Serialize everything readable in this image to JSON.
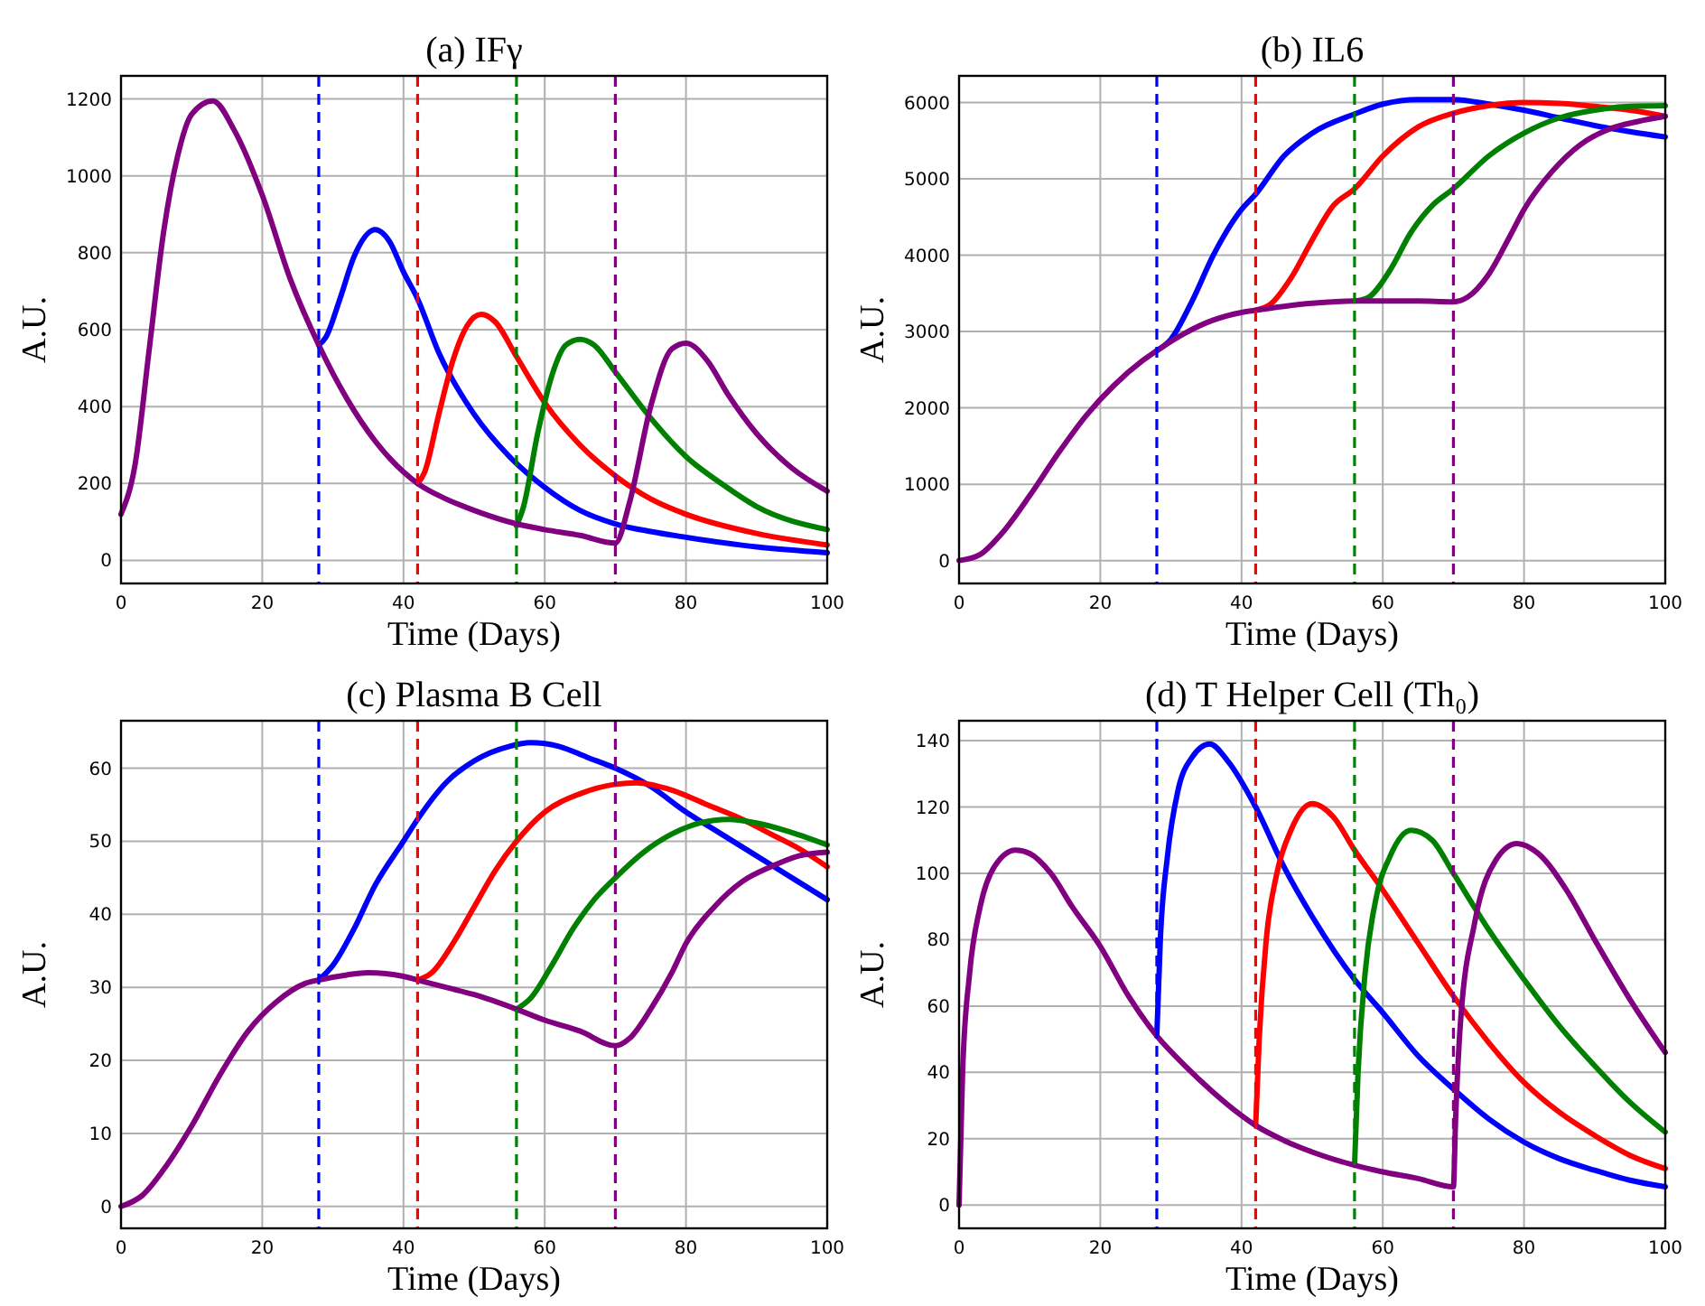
{
  "chart_data": [
    {
      "type": "line",
      "title": "(a) IFγ",
      "xlabel": "Time (Days)",
      "ylabel": "A.U.",
      "xlim": [
        0,
        100
      ],
      "ylim": [
        -60,
        1260
      ],
      "xticks": [
        0,
        20,
        40,
        60,
        80,
        100
      ],
      "yticks": [
        0,
        200,
        400,
        600,
        800,
        1000,
        1200
      ],
      "grid": true,
      "ref_lines": [
        {
          "axis": "x",
          "value": 28,
          "color": "#0000ff",
          "line_style": "dashed"
        },
        {
          "axis": "x",
          "value": 42,
          "color": "#ff0000",
          "line_style": "dashed"
        },
        {
          "axis": "x",
          "value": 56,
          "color": "#008000",
          "line_style": "dashed"
        },
        {
          "axis": "x",
          "value": 70,
          "color": "#800080",
          "line_style": "dashed"
        }
      ],
      "series": [
        {
          "color": "#0000ff",
          "x": [
            28,
            29,
            31,
            33,
            36,
            38,
            40,
            42,
            45,
            50,
            55,
            60,
            65,
            70,
            75,
            80,
            90,
            100
          ],
          "values": [
            560,
            580,
            680,
            790,
            860,
            830,
            750,
            680,
            540,
            380,
            270,
            190,
            130,
            95,
            75,
            60,
            35,
            20
          ]
        },
        {
          "color": "#ff0000",
          "x": [
            42,
            43,
            45,
            47,
            49,
            51,
            53,
            56,
            60,
            65,
            70,
            75,
            80,
            90,
            100
          ],
          "values": [
            200,
            230,
            380,
            520,
            610,
            640,
            620,
            530,
            410,
            300,
            220,
            160,
            120,
            70,
            40
          ]
        },
        {
          "color": "#008000",
          "x": [
            56,
            57,
            59,
            61,
            63,
            65,
            67,
            70,
            75,
            80,
            85,
            90,
            100
          ],
          "values": [
            90,
            140,
            330,
            480,
            560,
            575,
            560,
            490,
            370,
            270,
            200,
            140,
            80
          ]
        },
        {
          "color": "#800080",
          "x": [
            0,
            2,
            4,
            6,
            8,
            10,
            13,
            16,
            20,
            24,
            28,
            32,
            36,
            40,
            42,
            46,
            50,
            56,
            60,
            65,
            70,
            72,
            75,
            78,
            80,
            83,
            86,
            90,
            95,
            100
          ],
          "values": [
            120,
            250,
            550,
            850,
            1050,
            1160,
            1195,
            1120,
            950,
            730,
            560,
            420,
            310,
            230,
            200,
            160,
            130,
            95,
            80,
            65,
            45,
            150,
            400,
            550,
            565,
            520,
            430,
            330,
            240,
            180
          ]
        }
      ]
    },
    {
      "type": "line",
      "title": "(b) IL6",
      "xlabel": "Time (Days)",
      "ylabel": "A.U.",
      "xlim": [
        0,
        100
      ],
      "ylim": [
        -300,
        6350
      ],
      "xticks": [
        0,
        20,
        40,
        60,
        80,
        100
      ],
      "yticks": [
        0,
        1000,
        2000,
        3000,
        4000,
        5000,
        6000
      ],
      "grid": true,
      "ref_lines": [
        {
          "axis": "x",
          "value": 28,
          "color": "#0000ff",
          "line_style": "dashed"
        },
        {
          "axis": "x",
          "value": 42,
          "color": "#ff0000",
          "line_style": "dashed"
        },
        {
          "axis": "x",
          "value": 56,
          "color": "#008000",
          "line_style": "dashed"
        },
        {
          "axis": "x",
          "value": 70,
          "color": "#800080",
          "line_style": "dashed"
        }
      ],
      "series": [
        {
          "color": "#0000ff",
          "x": [
            28,
            30,
            33,
            36,
            40,
            42,
            46,
            50,
            56,
            60,
            65,
            70,
            75,
            80,
            85,
            90,
            95,
            100
          ],
          "values": [
            2750,
            2900,
            3400,
            4000,
            4600,
            4800,
            5300,
            5600,
            5850,
            5980,
            6040,
            6040,
            5980,
            5900,
            5800,
            5700,
            5620,
            5550
          ]
        },
        {
          "color": "#ff0000",
          "x": [
            42,
            44,
            47,
            50,
            53,
            56,
            60,
            65,
            70,
            75,
            80,
            85,
            90,
            95,
            100
          ],
          "values": [
            3280,
            3350,
            3700,
            4200,
            4650,
            4870,
            5300,
            5680,
            5860,
            5960,
            6000,
            5990,
            5950,
            5900,
            5820
          ]
        },
        {
          "color": "#008000",
          "x": [
            56,
            58,
            61,
            64,
            67,
            70,
            75,
            80,
            85,
            90,
            95,
            100
          ],
          "values": [
            3400,
            3450,
            3800,
            4300,
            4650,
            4870,
            5300,
            5600,
            5800,
            5900,
            5950,
            5960
          ]
        },
        {
          "color": "#800080",
          "x": [
            0,
            3,
            6,
            10,
            14,
            18,
            22,
            26,
            28,
            32,
            36,
            40,
            42,
            46,
            50,
            56,
            60,
            65,
            70,
            72,
            75,
            78,
            80,
            84,
            88,
            92,
            96,
            100
          ],
          "values": [
            0,
            80,
            350,
            850,
            1400,
            1900,
            2300,
            2620,
            2750,
            2980,
            3150,
            3250,
            3280,
            3330,
            3370,
            3400,
            3400,
            3400,
            3390,
            3450,
            3750,
            4250,
            4600,
            5100,
            5450,
            5650,
            5750,
            5820
          ]
        }
      ]
    },
    {
      "type": "line",
      "title": "(c) Plasma B Cell",
      "xlabel": "Time (Days)",
      "ylabel": "A.U.",
      "xlim": [
        0,
        100
      ],
      "ylim": [
        -3,
        66.5
      ],
      "xticks": [
        0,
        20,
        40,
        60,
        80,
        100
      ],
      "yticks": [
        0,
        10,
        20,
        30,
        40,
        50,
        60
      ],
      "grid": true,
      "ref_lines": [
        {
          "axis": "x",
          "value": 28,
          "color": "#0000ff",
          "line_style": "dashed"
        },
        {
          "axis": "x",
          "value": 42,
          "color": "#ff0000",
          "line_style": "dashed"
        },
        {
          "axis": "x",
          "value": 56,
          "color": "#008000",
          "line_style": "dashed"
        },
        {
          "axis": "x",
          "value": 70,
          "color": "#800080",
          "line_style": "dashed"
        }
      ],
      "series": [
        {
          "color": "#0000ff",
          "x": [
            28,
            30,
            33,
            36,
            40,
            42,
            46,
            50,
            55,
            58,
            62,
            66,
            70,
            75,
            80,
            85,
            90,
            95,
            100
          ],
          "values": [
            31,
            33,
            38,
            44,
            50,
            53,
            58,
            61,
            63,
            63.5,
            63,
            61.5,
            60,
            57.5,
            54,
            51,
            48,
            45,
            42
          ]
        },
        {
          "color": "#ff0000",
          "x": [
            42,
            44,
            47,
            50,
            53,
            56,
            60,
            65,
            70,
            73,
            78,
            83,
            88,
            92,
            96,
            100
          ],
          "values": [
            31,
            32,
            36,
            41,
            46,
            50,
            54,
            56.5,
            57.8,
            58,
            57,
            55,
            53,
            51,
            49,
            46.5
          ]
        },
        {
          "color": "#008000",
          "x": [
            56,
            58,
            61,
            64,
            67,
            70,
            74,
            78,
            82,
            86,
            90,
            94,
            100
          ],
          "values": [
            27,
            28.5,
            33,
            38,
            42,
            45,
            48.5,
            51,
            52.5,
            53,
            52.5,
            51.5,
            49.5
          ]
        },
        {
          "color": "#800080",
          "x": [
            0,
            3,
            6,
            10,
            14,
            18,
            22,
            26,
            28,
            32,
            35,
            40,
            42,
            46,
            50,
            56,
            60,
            65,
            70,
            72,
            75,
            78,
            80,
            84,
            88,
            92,
            96,
            100
          ],
          "values": [
            0,
            1.5,
            5,
            11,
            18,
            24,
            28,
            30.5,
            31,
            31.7,
            32,
            31.5,
            31,
            30,
            29,
            27,
            25.5,
            24,
            22,
            23,
            27,
            32,
            36,
            41,
            44.5,
            46.5,
            48,
            48.5
          ]
        }
      ]
    },
    {
      "type": "line",
      "title": "(d) T Helper Cell (Th₀)",
      "xlabel": "Time (Days)",
      "ylabel": "A.U.",
      "xlim": [
        0,
        100
      ],
      "ylim": [
        -7,
        146
      ],
      "xticks": [
        0,
        20,
        40,
        60,
        80,
        100
      ],
      "yticks": [
        0,
        20,
        40,
        60,
        80,
        100,
        120,
        140
      ],
      "grid": true,
      "ref_lines": [
        {
          "axis": "x",
          "value": 28,
          "color": "#0000ff",
          "line_style": "dashed"
        },
        {
          "axis": "x",
          "value": 42,
          "color": "#ff0000",
          "line_style": "dashed"
        },
        {
          "axis": "x",
          "value": 56,
          "color": "#008000",
          "line_style": "dashed"
        },
        {
          "axis": "x",
          "value": 70,
          "color": "#800080",
          "line_style": "dashed"
        }
      ],
      "series": [
        {
          "color": "#0000ff",
          "x": [
            28,
            28.5,
            29.5,
            31,
            33,
            35.5,
            38,
            42,
            46,
            50,
            56,
            60,
            65,
            70,
            75,
            80,
            85,
            90,
            95,
            100
          ],
          "values": [
            51,
            80,
            105,
            125,
            135,
            139,
            134,
            120,
            102,
            87,
            68,
            58,
            45,
            35,
            26,
            19,
            14,
            10.5,
            7.5,
            5.5
          ]
        },
        {
          "color": "#ff0000",
          "x": [
            42,
            42.5,
            43.5,
            45,
            47,
            50,
            53,
            56,
            60,
            65,
            70,
            75,
            80,
            85,
            90,
            95,
            100
          ],
          "values": [
            24,
            50,
            80,
            100,
            113,
            121,
            117,
            107,
            95,
            79,
            63,
            49,
            37,
            28,
            21,
            15,
            11
          ]
        },
        {
          "color": "#008000",
          "x": [
            56,
            56.5,
            57.5,
            59,
            61,
            64,
            67,
            70,
            75,
            80,
            85,
            90,
            95,
            100
          ],
          "values": [
            12,
            40,
            70,
            92,
            105,
            113,
            110,
            100,
            83,
            68,
            54,
            42,
            31,
            22
          ]
        },
        {
          "color": "#800080",
          "x": [
            0,
            0.5,
            1.5,
            3,
            5,
            8,
            10,
            13,
            16,
            20,
            24,
            28,
            32,
            36,
            40,
            42,
            46,
            50,
            56,
            60,
            65,
            70,
            70.3,
            71,
            73,
            76,
            79,
            82,
            86,
            90,
            95,
            100
          ],
          "values": [
            0,
            40,
            70,
            90,
            102,
            107,
            106,
            100,
            90,
            78,
            63,
            51,
            42,
            34,
            27,
            24,
            19.5,
            16,
            12,
            10,
            8,
            5.5,
            25,
            55,
            85,
            104,
            109,
            106,
            95,
            80,
            62,
            46
          ]
        }
      ]
    }
  ]
}
